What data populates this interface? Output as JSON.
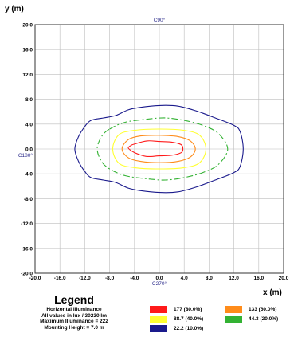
{
  "chart_data": {
    "type": "contour",
    "xlabel": "x (m)",
    "ylabel": "y (m)",
    "xlim": [
      -20,
      20
    ],
    "ylim": [
      -20,
      20
    ],
    "grid": true,
    "x_ticks": [
      "-20.0",
      "-16.0",
      "-12.0",
      "-8.0",
      "-4.0",
      "0.0",
      "4.0",
      "8.0",
      "12.0",
      "16.0",
      "20.0"
    ],
    "y_ticks": [
      "20.0",
      "16.0",
      "12.0",
      "8.0",
      "4.0",
      "0.0",
      "-4.0",
      "-8.0",
      "-12.0",
      "-16.0",
      "-20.0"
    ],
    "annotations": [
      {
        "text": "C90°",
        "x": 0,
        "y": 20
      },
      {
        "text": "C180°",
        "x": -20,
        "y": 0
      },
      {
        "text": "C270°",
        "x": 0,
        "y": -20
      }
    ],
    "series": [
      {
        "name": "177  (80.0%)",
        "color": "#ff1a1a",
        "dash": "",
        "points": [
          [
            -4.0,
            0.8
          ],
          [
            -2.0,
            1.3
          ],
          [
            0.0,
            1.2
          ],
          [
            2.0,
            1.1
          ],
          [
            3.5,
            0.7
          ],
          [
            3.8,
            0
          ],
          [
            3.5,
            -0.6
          ],
          [
            2.0,
            -1.0
          ],
          [
            0.0,
            -1.1
          ],
          [
            -2.0,
            -1.2
          ],
          [
            -3.5,
            -0.8
          ],
          [
            -4.5,
            -0.3
          ],
          [
            -5.0,
            0.2
          ],
          [
            -4.5,
            0.6
          ]
        ]
      },
      {
        "name": "133  (60.0%)",
        "color": "#ff8c1a",
        "dash": "",
        "points": [
          [
            -5.0,
            1.5
          ],
          [
            -3.0,
            2.1
          ],
          [
            0.0,
            2.2
          ],
          [
            3.0,
            2.0
          ],
          [
            5.0,
            1.3
          ],
          [
            5.8,
            0
          ],
          [
            5.0,
            -1.3
          ],
          [
            3.0,
            -2.0
          ],
          [
            0.0,
            -2.2
          ],
          [
            -3.0,
            -2.0
          ],
          [
            -5.0,
            -1.4
          ],
          [
            -6.0,
            0
          ]
        ]
      },
      {
        "name": "88.7  (40.0%)",
        "color": "#ffff33",
        "dash": "",
        "points": [
          [
            -6.5,
            2.3
          ],
          [
            -4.0,
            3.0
          ],
          [
            0.0,
            3.2
          ],
          [
            4.0,
            3.0
          ],
          [
            6.5,
            2.2
          ],
          [
            7.5,
            0
          ],
          [
            6.5,
            -2.2
          ],
          [
            4.0,
            -3.0
          ],
          [
            0.0,
            -3.2
          ],
          [
            -4.0,
            -3.0
          ],
          [
            -6.5,
            -2.3
          ],
          [
            -7.5,
            0
          ]
        ]
      },
      {
        "name": "44.3  (20.0%)",
        "color": "#33b233",
        "dash": "8 3 2 3",
        "points": [
          [
            -8.0,
            3.2
          ],
          [
            -5.5,
            4.3
          ],
          [
            -2.0,
            4.8
          ],
          [
            1.0,
            5.0
          ],
          [
            4.0,
            4.6
          ],
          [
            7.0,
            3.8
          ],
          [
            9.5,
            2.5
          ],
          [
            11.0,
            0
          ],
          [
            9.5,
            -2.5
          ],
          [
            7.0,
            -3.8
          ],
          [
            4.0,
            -4.6
          ],
          [
            1.0,
            -5.0
          ],
          [
            -2.0,
            -4.8
          ],
          [
            -5.5,
            -4.3
          ],
          [
            -8.0,
            -3.2
          ],
          [
            -9.3,
            -2.0
          ],
          [
            -10.0,
            0
          ],
          [
            -9.3,
            2.0
          ]
        ]
      },
      {
        "name": "22.2  (10.0%)",
        "color": "#1a1a8c",
        "dash": "",
        "points": [
          [
            -12.0,
            3.6
          ],
          [
            -11.0,
            4.6
          ],
          [
            -9.0,
            5.0
          ],
          [
            -7.0,
            5.4
          ],
          [
            -5.0,
            6.3
          ],
          [
            -3.0,
            6.7
          ],
          [
            0.0,
            7.0
          ],
          [
            3.0,
            6.9
          ],
          [
            6.0,
            6.1
          ],
          [
            9.0,
            5.0
          ],
          [
            12.0,
            3.8
          ],
          [
            13.0,
            2.8
          ],
          [
            13.5,
            0
          ],
          [
            13.0,
            -2.8
          ],
          [
            12.0,
            -3.8
          ],
          [
            9.0,
            -5.0
          ],
          [
            6.0,
            -6.1
          ],
          [
            3.0,
            -6.9
          ],
          [
            0.0,
            -7.0
          ],
          [
            -3.0,
            -6.7
          ],
          [
            -5.0,
            -6.3
          ],
          [
            -7.0,
            -5.4
          ],
          [
            -9.0,
            -5.0
          ],
          [
            -11.0,
            -4.6
          ],
          [
            -12.0,
            -3.6
          ],
          [
            -13.0,
            -2.0
          ],
          [
            -13.6,
            0
          ],
          [
            -13.0,
            2.0
          ]
        ]
      }
    ]
  },
  "legend": {
    "title": "Legend",
    "lines": [
      "Horizontal Illuminance",
      "All values in lux / 30230 lm",
      "Maximum Illuminance = 222",
      "Mounting Height = 7.0 m"
    ]
  }
}
